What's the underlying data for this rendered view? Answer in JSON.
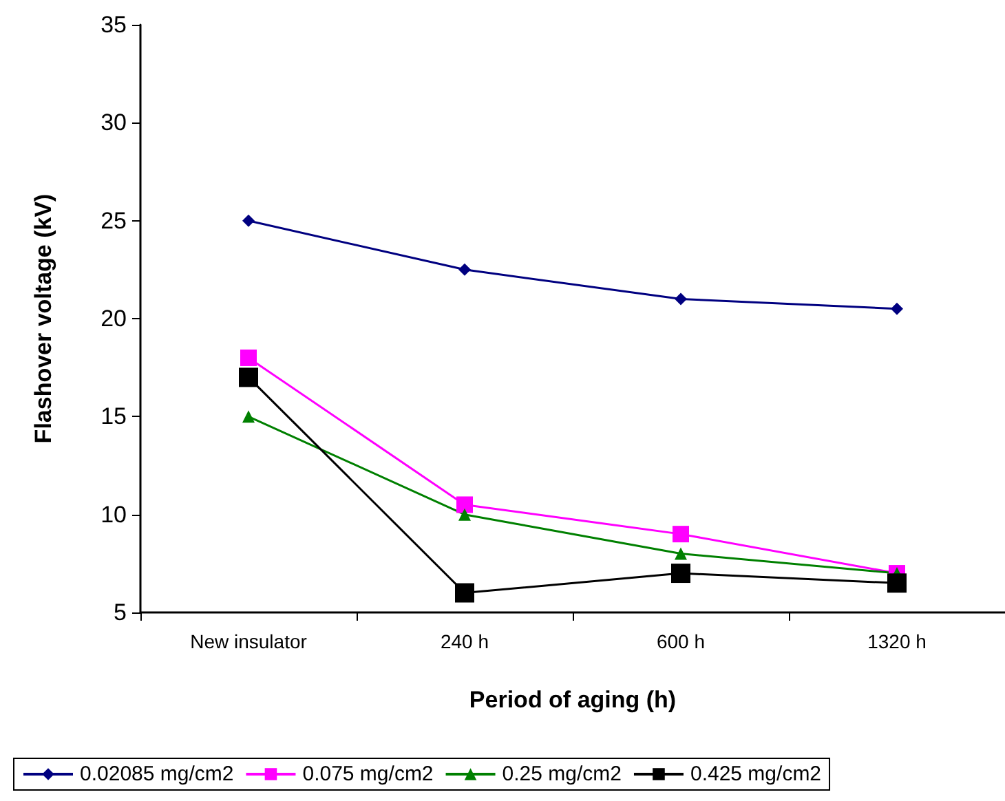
{
  "chart_data": {
    "type": "line",
    "xlabel": "Period of aging (h)",
    "ylabel": "Flashover voltage (kV)",
    "categories": [
      "New insulator",
      "240 h",
      "600 h",
      "1320 h"
    ],
    "series": [
      {
        "name": "0.02085 mg/cm2",
        "color": "#000080",
        "marker": "diamond",
        "values": [
          25,
          22.5,
          21,
          20.5
        ]
      },
      {
        "name": "0.075 mg/cm2",
        "color": "#ff00ff",
        "marker": "square",
        "values": [
          18,
          10.5,
          9,
          7
        ]
      },
      {
        "name": "0.25 mg/cm2",
        "color": "#008000",
        "marker": "triangle",
        "values": [
          15,
          10,
          8,
          7
        ]
      },
      {
        "name": "0.425 mg/cm2",
        "color": "#000000",
        "marker": "square",
        "values": [
          17,
          6,
          7,
          6.5
        ]
      }
    ],
    "ylim": [
      5,
      35
    ],
    "yticks": [
      5,
      10,
      15,
      20,
      25,
      30,
      35
    ],
    "grid": false,
    "legend": "bottom",
    "line_style": "solid"
  }
}
